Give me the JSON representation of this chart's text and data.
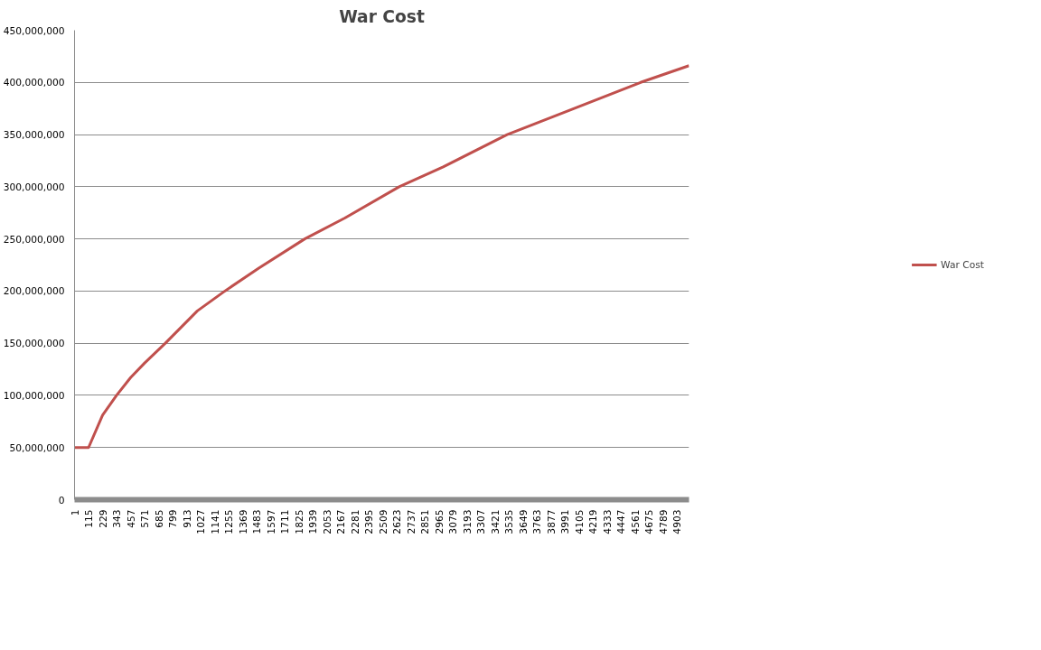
{
  "chart_data": {
    "type": "line",
    "title": "War Cost",
    "x": [
      1,
      115,
      229,
      343,
      457,
      571,
      740,
      1000,
      1224,
      1500,
      1874,
      2200,
      2642,
      3000,
      3520,
      4000,
      4606,
      5000
    ],
    "series": [
      {
        "name": "War Cost",
        "color": "#c0504d",
        "values": [
          50000000,
          50000000,
          81000000,
          100000000,
          117000000,
          131000000,
          150000000,
          181000000,
          200000000,
          222000000,
          250000000,
          270000000,
          300000000,
          319000000,
          350000000,
          372000000,
          400000000,
          416000000
        ]
      }
    ],
    "xlim": [
      1,
      5000
    ],
    "xticks": [
      1,
      115,
      229,
      343,
      457,
      571,
      685,
      799,
      913,
      1027,
      1141,
      1255,
      1369,
      1483,
      1597,
      1711,
      1825,
      1939,
      2053,
      2167,
      2281,
      2395,
      2509,
      2623,
      2737,
      2851,
      2965,
      3079,
      3193,
      3307,
      3421,
      3535,
      3649,
      3763,
      3877,
      3991,
      4105,
      4219,
      4333,
      4447,
      4561,
      4675,
      4789,
      4903
    ],
    "ylim": [
      0,
      450000000
    ],
    "yticks": [
      0,
      {
        "value": 50000000,
        "label": "50,000,000"
      },
      {
        "value": 100000000,
        "label": "100,000,000"
      },
      {
        "value": 150000000,
        "label": "150,000,000"
      },
      {
        "value": 200000000,
        "label": "200,000,000"
      },
      {
        "value": 250000000,
        "label": "250,000,000"
      },
      {
        "value": 300000000,
        "label": "300,000,000"
      },
      {
        "value": 350000000,
        "label": "350,000,000"
      },
      {
        "value": 400000000,
        "label": "400,000,000"
      },
      {
        "value": 450000000,
        "label": "450,000,000"
      }
    ],
    "grid": "y",
    "legend": "right",
    "marker": "none",
    "line_style": "solid"
  }
}
